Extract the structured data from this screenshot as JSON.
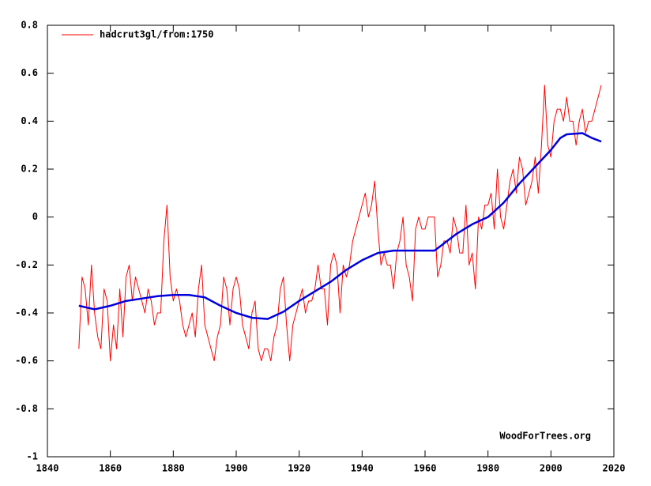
{
  "chart_data": {
    "type": "line",
    "xlim": [
      1840,
      2020
    ],
    "xticks": [
      1840,
      1860,
      1880,
      1900,
      1920,
      1940,
      1960,
      1980,
      2000,
      2020
    ],
    "ylim": [
      -1,
      0.8
    ],
    "yticks": [
      -1,
      -0.8,
      -0.6,
      -0.4,
      -0.2,
      0,
      0.2,
      0.4,
      0.6,
      0.8
    ],
    "grid": false,
    "legend": "top-left",
    "annotation": "WoodForTrees.org",
    "series": [
      {
        "name": "hadcrut3gl/from:1750",
        "color": "#ff0000",
        "width": 1,
        "x": [
          1850,
          1851,
          1852,
          1853,
          1854,
          1855,
          1856,
          1857,
          1858,
          1859,
          1860,
          1861,
          1862,
          1863,
          1864,
          1865,
          1866,
          1867,
          1868,
          1869,
          1870,
          1871,
          1872,
          1873,
          1874,
          1875,
          1876,
          1877,
          1878,
          1879,
          1880,
          1881,
          1882,
          1883,
          1884,
          1885,
          1886,
          1887,
          1888,
          1889,
          1890,
          1891,
          1892,
          1893,
          1894,
          1895,
          1896,
          1897,
          1898,
          1899,
          1900,
          1901,
          1902,
          1903,
          1904,
          1905,
          1906,
          1907,
          1908,
          1909,
          1910,
          1911,
          1912,
          1913,
          1914,
          1915,
          1916,
          1917,
          1918,
          1919,
          1920,
          1921,
          1922,
          1923,
          1924,
          1925,
          1926,
          1927,
          1928,
          1929,
          1930,
          1931,
          1932,
          1933,
          1934,
          1935,
          1936,
          1937,
          1938,
          1939,
          1940,
          1941,
          1942,
          1943,
          1944,
          1945,
          1946,
          1947,
          1948,
          1949,
          1950,
          1951,
          1952,
          1953,
          1954,
          1955,
          1956,
          1957,
          1958,
          1959,
          1960,
          1961,
          1962,
          1963,
          1964,
          1965,
          1966,
          1967,
          1968,
          1969,
          1970,
          1971,
          1972,
          1973,
          1974,
          1975,
          1976,
          1977,
          1978,
          1979,
          1980,
          1981,
          1982,
          1983,
          1984,
          1985,
          1986,
          1987,
          1988,
          1989,
          1990,
          1991,
          1992,
          1993,
          1994,
          1995,
          1996,
          1997,
          1998,
          1999,
          2000,
          2001,
          2002,
          2003,
          2004,
          2005,
          2006,
          2007,
          2008,
          2009,
          2010,
          2011,
          2012,
          2013,
          2014,
          2015,
          2016
        ],
        "values": [
          -0.55,
          -0.25,
          -0.3,
          -0.45,
          -0.2,
          -0.4,
          -0.5,
          -0.55,
          -0.3,
          -0.35,
          -0.6,
          -0.45,
          -0.55,
          -0.3,
          -0.5,
          -0.25,
          -0.2,
          -0.35,
          -0.25,
          -0.3,
          -0.35,
          -0.4,
          -0.3,
          -0.35,
          -0.45,
          -0.4,
          -0.4,
          -0.1,
          0.05,
          -0.25,
          -0.35,
          -0.3,
          -0.35,
          -0.45,
          -0.5,
          -0.45,
          -0.4,
          -0.5,
          -0.3,
          -0.2,
          -0.45,
          -0.5,
          -0.55,
          -0.6,
          -0.5,
          -0.45,
          -0.25,
          -0.3,
          -0.45,
          -0.3,
          -0.25,
          -0.3,
          -0.45,
          -0.5,
          -0.55,
          -0.4,
          -0.35,
          -0.55,
          -0.6,
          -0.55,
          -0.55,
          -0.6,
          -0.5,
          -0.45,
          -0.3,
          -0.25,
          -0.45,
          -0.6,
          -0.45,
          -0.4,
          -0.35,
          -0.3,
          -0.4,
          -0.35,
          -0.35,
          -0.3,
          -0.2,
          -0.3,
          -0.3,
          -0.45,
          -0.2,
          -0.15,
          -0.2,
          -0.4,
          -0.2,
          -0.25,
          -0.2,
          -0.1,
          -0.05,
          0.0,
          0.05,
          0.1,
          0.0,
          0.05,
          0.15,
          -0.05,
          -0.2,
          -0.15,
          -0.2,
          -0.2,
          -0.3,
          -0.15,
          -0.1,
          0.0,
          -0.2,
          -0.25,
          -0.35,
          -0.05,
          0.0,
          -0.05,
          -0.05,
          0.0,
          0.0,
          0.0,
          -0.25,
          -0.2,
          -0.1,
          -0.1,
          -0.15,
          0.0,
          -0.05,
          -0.15,
          -0.15,
          0.05,
          -0.2,
          -0.15,
          -0.3,
          0.0,
          -0.05,
          0.05,
          0.05,
          0.1,
          -0.05,
          0.2,
          0.0,
          -0.05,
          0.05,
          0.15,
          0.2,
          0.1,
          0.25,
          0.2,
          0.05,
          0.1,
          0.15,
          0.25,
          0.1,
          0.3,
          0.55,
          0.3,
          0.25,
          0.4,
          0.45,
          0.45,
          0.4,
          0.5,
          0.4,
          0.4,
          0.3,
          0.4,
          0.45,
          0.35,
          0.4,
          0.4,
          0.45,
          0.5,
          0.55
        ]
      },
      {
        "color": "#0000dd",
        "width": 2.5,
        "x": [
          1850,
          1855,
          1860,
          1865,
          1870,
          1875,
          1880,
          1885,
          1890,
          1895,
          1900,
          1905,
          1910,
          1915,
          1920,
          1925,
          1930,
          1935,
          1940,
          1945,
          1950,
          1955,
          1960,
          1963,
          1965,
          1970,
          1975,
          1980,
          1985,
          1990,
          1995,
          2000,
          2003,
          2005,
          2010,
          2013,
          2016
        ],
        "values": [
          -0.37,
          -0.385,
          -0.37,
          -0.35,
          -0.34,
          -0.33,
          -0.325,
          -0.325,
          -0.335,
          -0.37,
          -0.4,
          -0.42,
          -0.425,
          -0.395,
          -0.35,
          -0.31,
          -0.27,
          -0.22,
          -0.18,
          -0.15,
          -0.14,
          -0.14,
          -0.14,
          -0.14,
          -0.12,
          -0.07,
          -0.03,
          0.0,
          0.06,
          0.14,
          0.21,
          0.28,
          0.33,
          0.345,
          0.35,
          0.33,
          0.315
        ]
      }
    ]
  }
}
